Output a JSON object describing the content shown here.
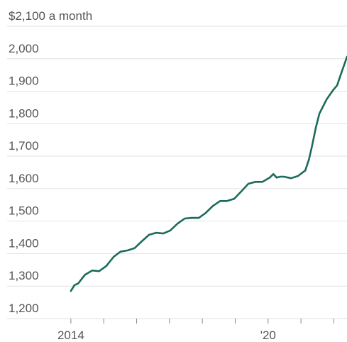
{
  "chart_data": {
    "type": "line",
    "x": [
      2014.0,
      2014.11,
      2014.22,
      2014.43,
      2014.65,
      2014.86,
      2015.08,
      2015.3,
      2015.51,
      2015.73,
      2015.94,
      2016.16,
      2016.38,
      2016.59,
      2016.81,
      2017.02,
      2017.24,
      2017.46,
      2017.67,
      2017.89,
      2018.1,
      2018.32,
      2018.54,
      2018.75,
      2018.97,
      2019.18,
      2019.4,
      2019.62,
      2019.83,
      2020.05,
      2020.16,
      2020.26,
      2020.37,
      2020.48,
      2020.7,
      2020.91,
      2021.13,
      2021.24,
      2021.34,
      2021.45,
      2021.56,
      2021.78,
      2021.99,
      2022.1,
      2022.21,
      2022.4
    ],
    "series": [
      {
        "color": "#1b6b5b",
        "values": [
          1285,
          1303,
          1308,
          1335,
          1348,
          1346,
          1362,
          1390,
          1406,
          1410,
          1417,
          1438,
          1458,
          1464,
          1462,
          1471,
          1492,
          1508,
          1510,
          1510,
          1525,
          1547,
          1562,
          1562,
          1569,
          1591,
          1615,
          1621,
          1621,
          1634,
          1645,
          1634,
          1637,
          1637,
          1632,
          1639,
          1656,
          1689,
          1733,
          1787,
          1831,
          1875,
          1905,
          1918,
          1951,
          2006
        ]
      }
    ],
    "xlim": [
      2012.06,
      2022.4
    ],
    "xticks": [
      2014,
      {
        "value": 2020,
        "label": "'20"
      }
    ],
    "xminor_ticks": [
      2015,
      2016,
      2017,
      2018,
      2019,
      2021,
      2022
    ],
    "ylim": [
      1200,
      2100
    ],
    "yticks": [
      {
        "value": 1200,
        "label": "1,200"
      },
      {
        "value": 1300,
        "label": "1,300"
      },
      {
        "value": 1400,
        "label": "1,400"
      },
      {
        "value": 1500,
        "label": "1,500"
      },
      {
        "value": 1600,
        "label": "1,600"
      },
      {
        "value": 1700,
        "label": "1,700"
      },
      {
        "value": 1800,
        "label": "1,800"
      },
      {
        "value": 1900,
        "label": "1,900"
      },
      {
        "value": 2000,
        "label": "2,000"
      },
      {
        "value": 2100,
        "label": "$2,100 a month"
      }
    ],
    "grid": true
  }
}
